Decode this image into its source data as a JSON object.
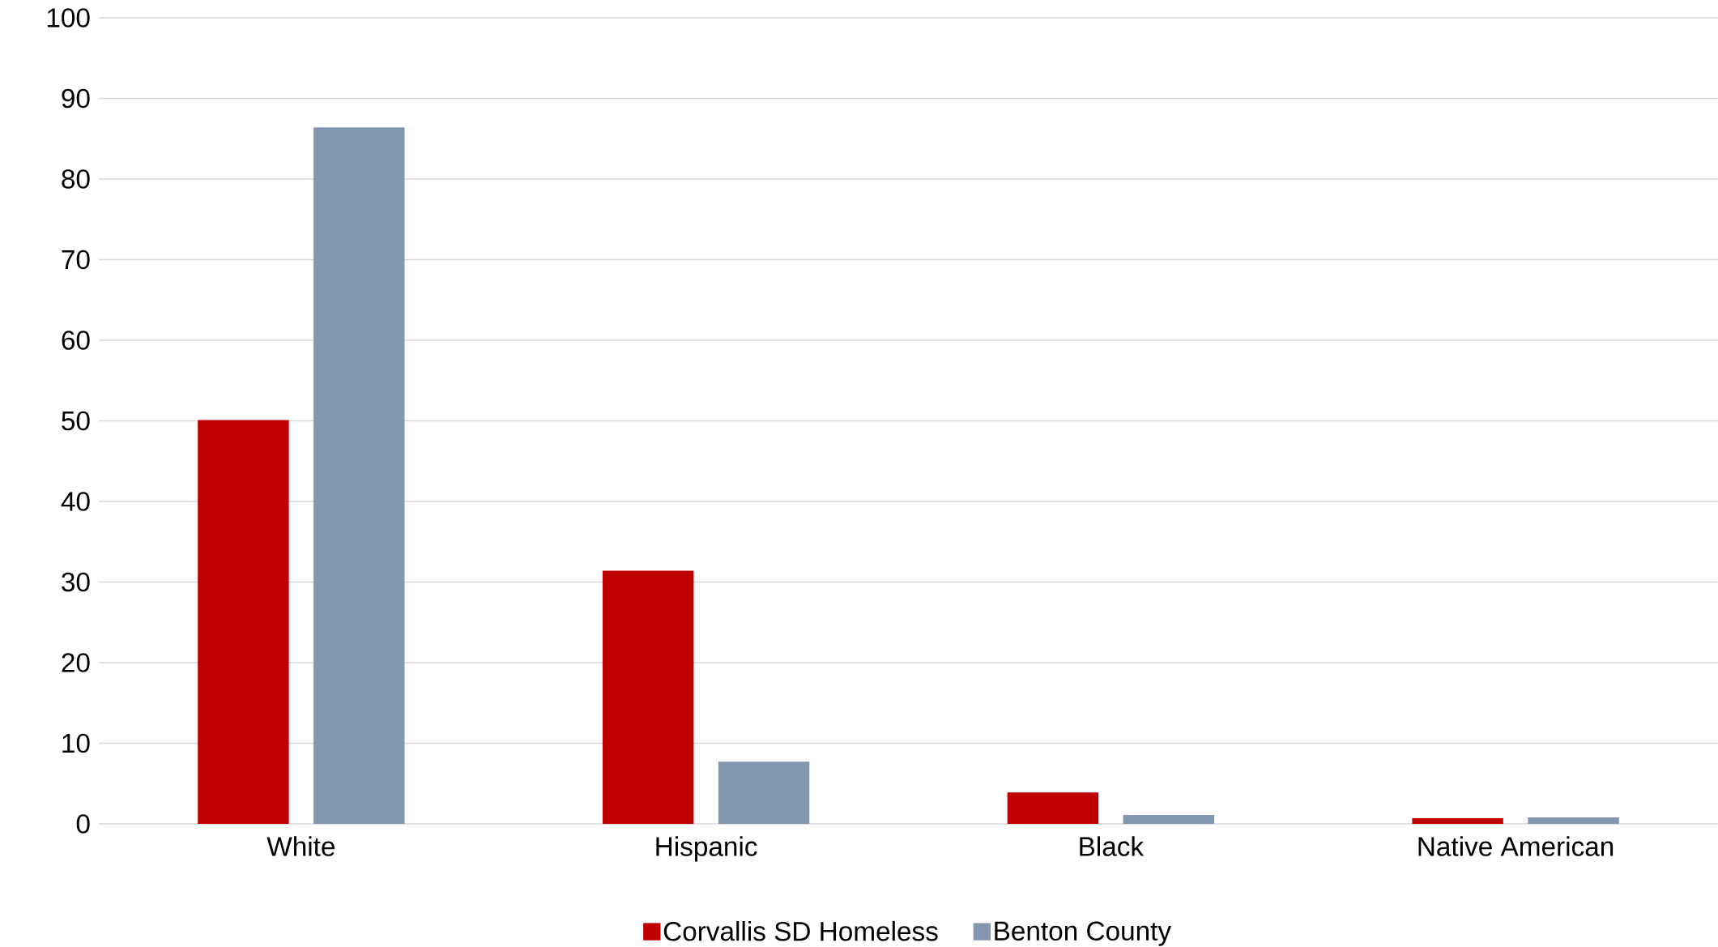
{
  "chart_data": {
    "type": "bar",
    "categories": [
      "White",
      "Hispanic",
      "Black",
      "Native American"
    ],
    "series": [
      {
        "name": "Corvallis SD Homeless",
        "color": "#c00000",
        "values": [
          50.1,
          31.4,
          3.9,
          0.7
        ]
      },
      {
        "name": "Benton County",
        "color": "#8497b0",
        "values": [
          86.4,
          7.7,
          1.1,
          0.8
        ]
      }
    ],
    "ylim": [
      0,
      100
    ],
    "yticks": [
      0,
      10,
      20,
      30,
      40,
      50,
      60,
      70,
      80,
      90,
      100
    ],
    "grid": "y",
    "legend": "bottom"
  }
}
